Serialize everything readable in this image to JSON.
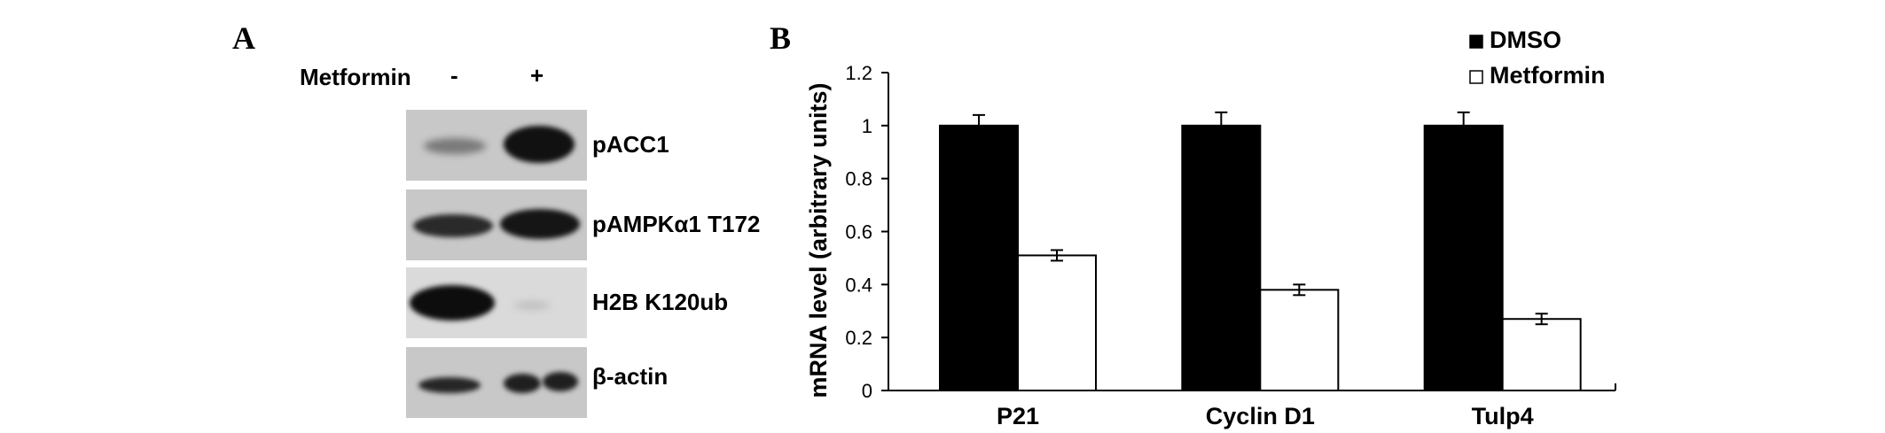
{
  "panel_a": {
    "letter": "A",
    "header_label": "Metformin",
    "lane_minus": "-",
    "lane_plus": "+",
    "blots": [
      {
        "label": "pACC1"
      },
      {
        "label": "pAMPKα1 T172"
      },
      {
        "label": "H2B K120ub"
      },
      {
        "label": "β-actin"
      }
    ]
  },
  "panel_b": {
    "letter": "B"
  },
  "chart_data": {
    "type": "bar",
    "title": "",
    "xlabel": "",
    "ylabel": "mRNA level (arbitrary units)",
    "ylim": [
      0,
      1.2
    ],
    "yticks": [
      "0",
      "0.2",
      "0.4",
      "0.6",
      "0.8",
      "1",
      "1.2"
    ],
    "categories": [
      "P21",
      "Cyclin D1",
      "Tulp4"
    ],
    "legend_position": "top-right",
    "grid": false,
    "series": [
      {
        "name": "DMSO",
        "color": "#000000",
        "values": [
          1.0,
          1.0,
          1.0
        ],
        "errors": [
          0.04,
          0.05,
          0.05
        ]
      },
      {
        "name": "Metformin",
        "color": "#ffffff",
        "values": [
          0.51,
          0.38,
          0.27
        ],
        "errors": [
          0.02,
          0.02,
          0.02
        ]
      }
    ]
  }
}
